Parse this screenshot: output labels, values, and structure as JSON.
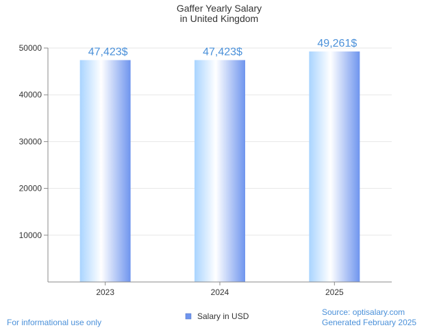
{
  "chart_data": {
    "type": "bar",
    "title_lines": [
      "Gaffer Yearly Salary",
      "in United Kingdom"
    ],
    "categories": [
      "2023",
      "2024",
      "2025"
    ],
    "series": [
      {
        "name": "Salary in USD",
        "values": [
          47423,
          47423,
          49261
        ]
      }
    ],
    "data_labels": [
      "47,423$",
      "47,423$",
      "49,261$"
    ],
    "y_ticks": [
      "10000",
      "20000",
      "30000",
      "40000",
      "50000"
    ],
    "ylim": [
      0,
      50000
    ],
    "grid": true,
    "legend_position": "bottom-center"
  },
  "footer": {
    "note": "For informational use only",
    "source": "Source: optisalary.com",
    "generated": "Generated February 2025"
  },
  "colors": {
    "bar_light": "#ffffff",
    "bar_mid": "#b8dcff",
    "bar_dark": "#6f95ee",
    "label": "#4a90d9",
    "axis": "#888888",
    "grid": "#e6e6e6",
    "text": "#333333"
  }
}
